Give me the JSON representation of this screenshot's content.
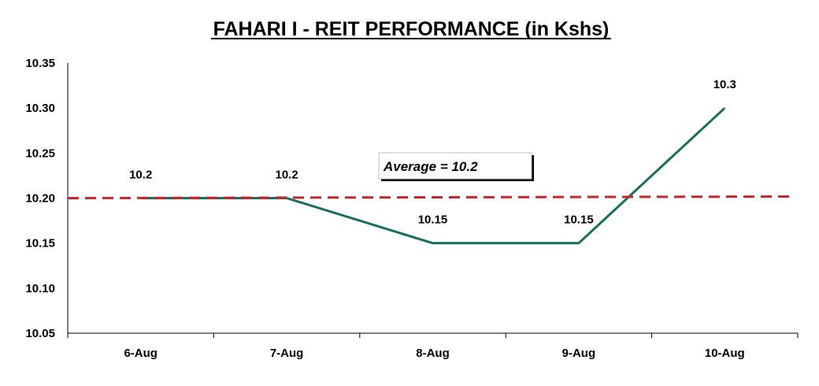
{
  "chart_data": {
    "type": "line",
    "title": "FAHARI I - REIT PERFORMANCE (in Kshs)",
    "categories": [
      "6-Aug",
      "7-Aug",
      "8-Aug",
      "9-Aug",
      "10-Aug"
    ],
    "series": [
      {
        "values": [
          10.2,
          10.2,
          10.15,
          10.15,
          10.3
        ],
        "color": "#1a6e5e"
      }
    ],
    "data_labels": [
      "10.2",
      "10.2",
      "10.15",
      "10.15",
      "10.3"
    ],
    "average": {
      "value": 10.2,
      "label": "Average = 10.2",
      "color": "#c0282d"
    },
    "ylim": [
      10.05,
      10.35
    ],
    "yticks": [
      "10.05",
      "10.10",
      "10.15",
      "10.20",
      "10.25",
      "10.30",
      "10.35"
    ],
    "grid": false,
    "legend": "none"
  }
}
